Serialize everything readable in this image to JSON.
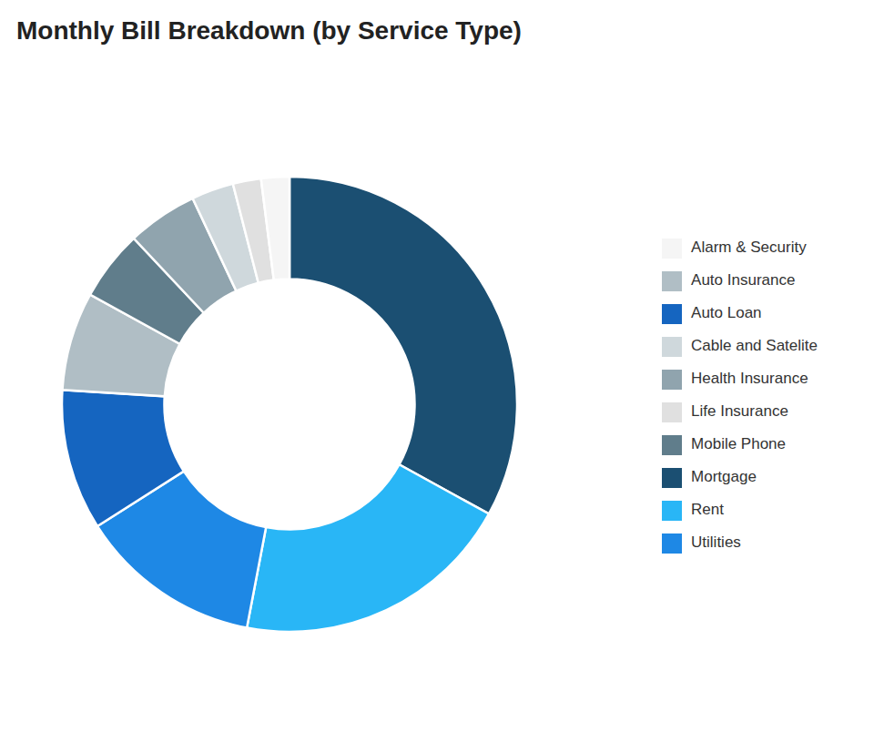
{
  "chart_data": {
    "type": "donut",
    "title": "Monthly Bill Breakdown (by Service Type)",
    "categories": [
      "Mortgage",
      "Rent",
      "Utilities",
      "Auto Loan",
      "Auto Insurance",
      "Mobile Phone",
      "Health Insurance",
      "Cable and Satelite",
      "Life Insurance",
      "Alarm & Security"
    ],
    "values": [
      33,
      20,
      13,
      10,
      7,
      5,
      5,
      3,
      2,
      2
    ],
    "colors": [
      "#1b4f72",
      "#29b6f6",
      "#1e88e5",
      "#1565c0",
      "#b0bec5",
      "#607d8b",
      "#90a4ae",
      "#cfd8dc",
      "#e0e0e0",
      "#f5f5f5"
    ],
    "legend": "right"
  }
}
